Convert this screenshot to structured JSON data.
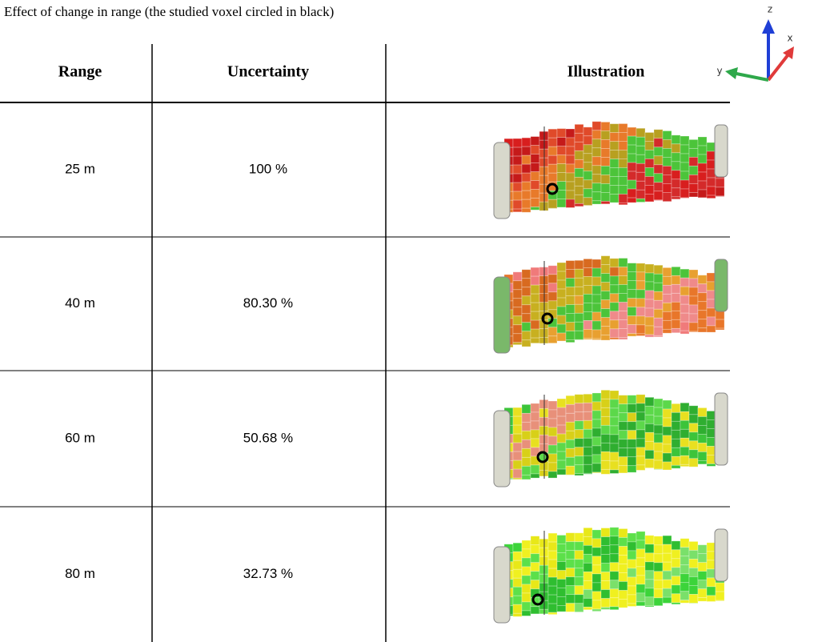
{
  "caption": "Effect of change in range (the studied voxel circled in black)",
  "axes": {
    "z": "z",
    "x": "x",
    "y": "y"
  },
  "table": {
    "header": [
      "Range",
      "Uncertainty",
      "Illustration"
    ],
    "rows": [
      [
        "25 m",
        "100 %"
      ],
      [
        "40 m",
        "80.30 %"
      ],
      [
        "60 m",
        "50.68 %"
      ],
      [
        "80 m",
        "32.73 %"
      ]
    ]
  }
}
